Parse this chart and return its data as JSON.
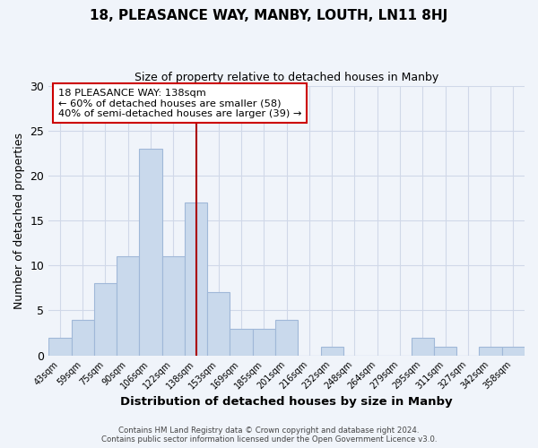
{
  "title": "18, PLEASANCE WAY, MANBY, LOUTH, LN11 8HJ",
  "subtitle": "Size of property relative to detached houses in Manby",
  "xlabel": "Distribution of detached houses by size in Manby",
  "ylabel": "Number of detached properties",
  "bar_labels": [
    "43sqm",
    "59sqm",
    "75sqm",
    "90sqm",
    "106sqm",
    "122sqm",
    "138sqm",
    "153sqm",
    "169sqm",
    "185sqm",
    "201sqm",
    "216sqm",
    "232sqm",
    "248sqm",
    "264sqm",
    "279sqm",
    "295sqm",
    "311sqm",
    "327sqm",
    "342sqm",
    "358sqm"
  ],
  "bar_values": [
    2,
    4,
    8,
    11,
    23,
    11,
    17,
    7,
    3,
    3,
    4,
    0,
    1,
    0,
    0,
    0,
    2,
    1,
    0,
    1,
    1
  ],
  "bar_color": "#c9d9ec",
  "bar_edge_color": "#a0b8d8",
  "grid_color": "#d0d8e8",
  "bg_color": "#f0f4fa",
  "vline_x_index": 6,
  "vline_color": "#aa0000",
  "annotation_text": "18 PLEASANCE WAY: 138sqm\n← 60% of detached houses are smaller (58)\n40% of semi-detached houses are larger (39) →",
  "annotation_box_color": "#ffffff",
  "annotation_box_edge": "#cc0000",
  "ylim": [
    0,
    30
  ],
  "yticks": [
    0,
    5,
    10,
    15,
    20,
    25,
    30
  ],
  "footer_line1": "Contains HM Land Registry data © Crown copyright and database right 2024.",
  "footer_line2": "Contains public sector information licensed under the Open Government Licence v3.0."
}
